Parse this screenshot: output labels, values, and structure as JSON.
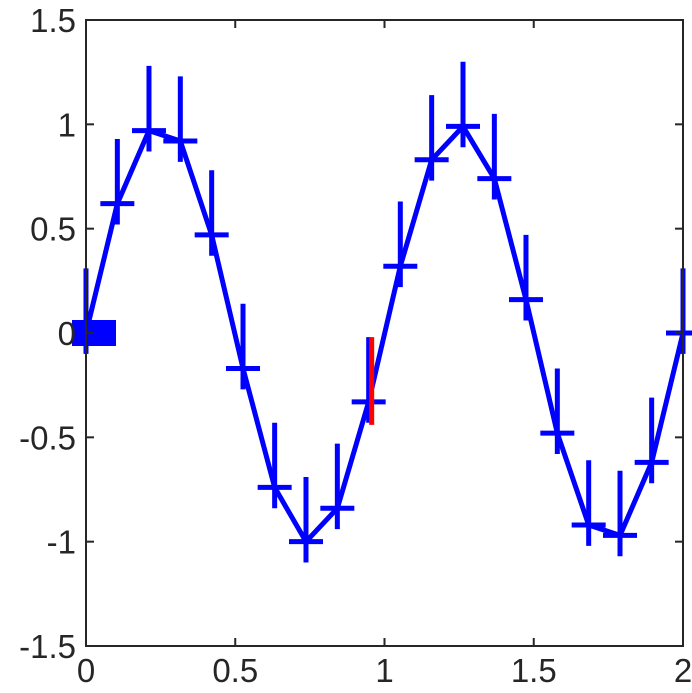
{
  "chart_data": {
    "type": "line",
    "title": "",
    "xlabel": "",
    "ylabel": "",
    "xlim": [
      0,
      2
    ],
    "ylim": [
      -1.5,
      1.5
    ],
    "xticks": [
      0,
      0.5,
      1,
      1.5,
      2
    ],
    "xtick_labels": [
      "0",
      "0.5",
      "1",
      "1.5",
      "2"
    ],
    "yticks": [
      -1.5,
      -1,
      -0.5,
      0,
      0.5,
      1,
      1.5
    ],
    "ytick_labels": [
      "-1.5",
      "-1",
      "-0.5",
      "0",
      "0.5",
      "1",
      "1.5"
    ],
    "grid": false,
    "series": [
      {
        "color": "#0000ff",
        "marker": "horizontal-bar",
        "x": [
          0,
          0.105,
          0.211,
          0.316,
          0.421,
          0.526,
          0.632,
          0.737,
          0.842,
          0.947,
          1.053,
          1.158,
          1.263,
          1.368,
          1.474,
          1.579,
          1.684,
          1.789,
          1.895,
          2.0
        ],
        "y": [
          0,
          0.62,
          0.97,
          0.92,
          0.47,
          -0.17,
          -0.74,
          -1.0,
          -0.84,
          -0.33,
          0.32,
          0.83,
          0.99,
          0.74,
          0.16,
          -0.48,
          -0.92,
          -0.97,
          -0.62,
          0
        ],
        "err_low": [
          0.1,
          0.1,
          0.1,
          0.1,
          0.1,
          0.1,
          0.1,
          0.1,
          0.1,
          0.1,
          0.1,
          0.1,
          0.1,
          0.1,
          0.1,
          0.1,
          0.1,
          0.1,
          0.1,
          0.1
        ],
        "err_high": [
          0.31,
          0.31,
          0.31,
          0.31,
          0.31,
          0.31,
          0.31,
          0.31,
          0.31,
          0.31,
          0.31,
          0.31,
          0.31,
          0.31,
          0.31,
          0.31,
          0.31,
          0.31,
          0.31,
          0.31
        ]
      }
    ],
    "highlight": {
      "color": "#ff0000",
      "x": 0.947,
      "y_from": -0.44,
      "y_to": -0.02
    },
    "first_marker_color": "#0000ff"
  }
}
